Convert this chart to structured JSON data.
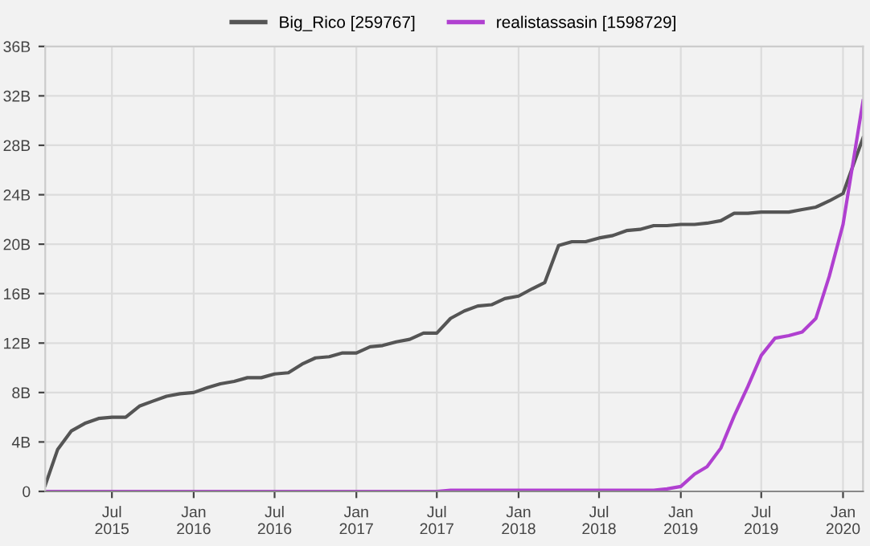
{
  "chart_data": {
    "type": "line",
    "x": [
      "2015-02",
      "2015-03",
      "2015-04",
      "2015-05",
      "2015-06",
      "2015-07",
      "2015-08",
      "2015-09",
      "2015-10",
      "2015-11",
      "2015-12",
      "2016-01",
      "2016-02",
      "2016-03",
      "2016-04",
      "2016-05",
      "2016-06",
      "2016-07",
      "2016-08",
      "2016-09",
      "2016-10",
      "2016-11",
      "2016-12",
      "2017-01",
      "2017-02",
      "2017-03",
      "2017-04",
      "2017-05",
      "2017-06",
      "2017-07",
      "2017-08",
      "2017-09",
      "2017-10",
      "2017-11",
      "2017-12",
      "2018-01",
      "2018-02",
      "2018-03",
      "2018-04",
      "2018-05",
      "2018-06",
      "2018-07",
      "2018-08",
      "2018-09",
      "2018-10",
      "2018-11",
      "2018-12",
      "2019-01",
      "2019-02",
      "2019-03",
      "2019-04",
      "2019-05",
      "2019-06",
      "2019-07",
      "2019-08",
      "2019-09",
      "2019-10",
      "2019-11",
      "2019-12",
      "2020-01",
      "2020-02-15"
    ],
    "series": [
      {
        "name": "Big_Rico [259767]",
        "color": "#555555",
        "values": [
          0.5,
          3.4,
          4.9,
          5.5,
          5.9,
          6.0,
          6.0,
          6.9,
          7.3,
          7.7,
          7.9,
          8.0,
          8.4,
          8.7,
          8.9,
          9.2,
          9.2,
          9.5,
          9.6,
          10.3,
          10.8,
          10.9,
          11.2,
          11.2,
          11.7,
          11.8,
          12.1,
          12.3,
          12.8,
          12.8,
          14.0,
          14.6,
          15.0,
          15.1,
          15.6,
          15.8,
          16.4,
          16.9,
          19.9,
          20.2,
          20.2,
          20.5,
          20.7,
          21.1,
          21.2,
          21.5,
          21.5,
          21.6,
          21.6,
          21.7,
          21.9,
          22.5,
          22.5,
          22.6,
          22.6,
          22.6,
          22.8,
          23.0,
          23.5,
          24.1,
          28.6
        ]
      },
      {
        "name": "realistassasin [1598729]",
        "color": "#b040d0",
        "values": [
          0,
          0,
          0,
          0,
          0,
          0,
          0,
          0,
          0,
          0,
          0,
          0,
          0,
          0,
          0,
          0,
          0,
          0,
          0,
          0,
          0,
          0,
          0,
          0,
          0,
          0,
          0,
          0,
          0,
          0,
          0.1,
          0.1,
          0.1,
          0.1,
          0.1,
          0.1,
          0.1,
          0.1,
          0.1,
          0.1,
          0.1,
          0.1,
          0.1,
          0.1,
          0.1,
          0.1,
          0.2,
          0.4,
          1.4,
          2.0,
          3.5,
          6.1,
          8.5,
          11.0,
          12.4,
          12.6,
          12.9,
          14.0,
          17.4,
          21.6,
          31.6
        ]
      }
    ],
    "xlim": [
      "2015-02-01",
      "2020-02-15"
    ],
    "xticks": [
      {
        "value": "2015-07",
        "label": "Jul\n2015"
      },
      {
        "value": "2016-01",
        "label": "Jan\n2016"
      },
      {
        "value": "2016-07",
        "label": "Jul\n2016"
      },
      {
        "value": "2017-01",
        "label": "Jan\n2017"
      },
      {
        "value": "2017-07",
        "label": "Jul\n2017"
      },
      {
        "value": "2018-01",
        "label": "Jan\n2018"
      },
      {
        "value": "2018-07",
        "label": "Jul\n2018"
      },
      {
        "value": "2019-01",
        "label": "Jan\n2019"
      },
      {
        "value": "2019-07",
        "label": "Jul\n2019"
      },
      {
        "value": "2020-01",
        "label": "Jan\n2020"
      }
    ],
    "ylim": [
      0,
      36
    ],
    "yticks": [
      0,
      {
        "value": 4,
        "label": "4B"
      },
      {
        "value": 8,
        "label": "8B"
      },
      {
        "value": 12,
        "label": "12B"
      },
      {
        "value": 16,
        "label": "16B"
      },
      {
        "value": 20,
        "label": "20B"
      },
      {
        "value": 24,
        "label": "24B"
      },
      {
        "value": 28,
        "label": "28B"
      },
      {
        "value": 32,
        "label": "32B"
      },
      {
        "value": 36,
        "label": "36B"
      }
    ],
    "grid": true,
    "legend": "top",
    "marker": "none",
    "line_style": "solid"
  }
}
